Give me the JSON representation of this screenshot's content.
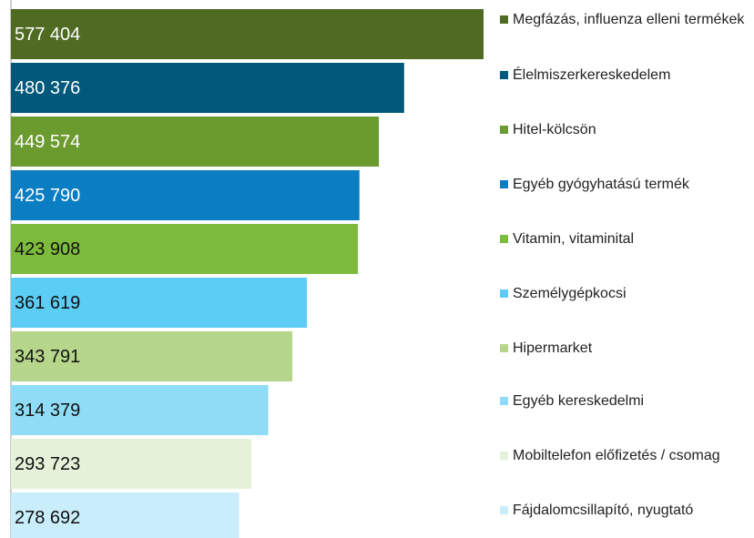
{
  "chart_data": {
    "type": "bar",
    "orientation": "horizontal",
    "categories": [
      "Megfázás, influenza elleni termékek",
      "Élelmiszerkereskedelem",
      "Hitel-kölcsön",
      "Egyéb gyógyhatású termék",
      "Vitamin, vitaminital",
      "Személygépkocsi",
      "Hipermarket",
      "Egyéb kereskedelmi",
      "Mobiltelefon előfizetés / csomag",
      "Fájdalomcsillapító, nyugtató"
    ],
    "values": [
      577404,
      480376,
      449574,
      425790,
      423908,
      361619,
      343791,
      314379,
      293723,
      278692
    ],
    "value_labels": [
      "577 404",
      "480 376",
      "449 574",
      "425 790",
      "423 908",
      "361 619",
      "343 791",
      "314 379",
      "293 723",
      "278 692"
    ],
    "colors": [
      "#4f6b22",
      "#00587a",
      "#6b9a2e",
      "#0b7dc3",
      "#7dbb3c",
      "#5ccdf4",
      "#b6d68c",
      "#8edcf6",
      "#e5f1d8",
      "#c9edfa"
    ],
    "legend": "right"
  }
}
